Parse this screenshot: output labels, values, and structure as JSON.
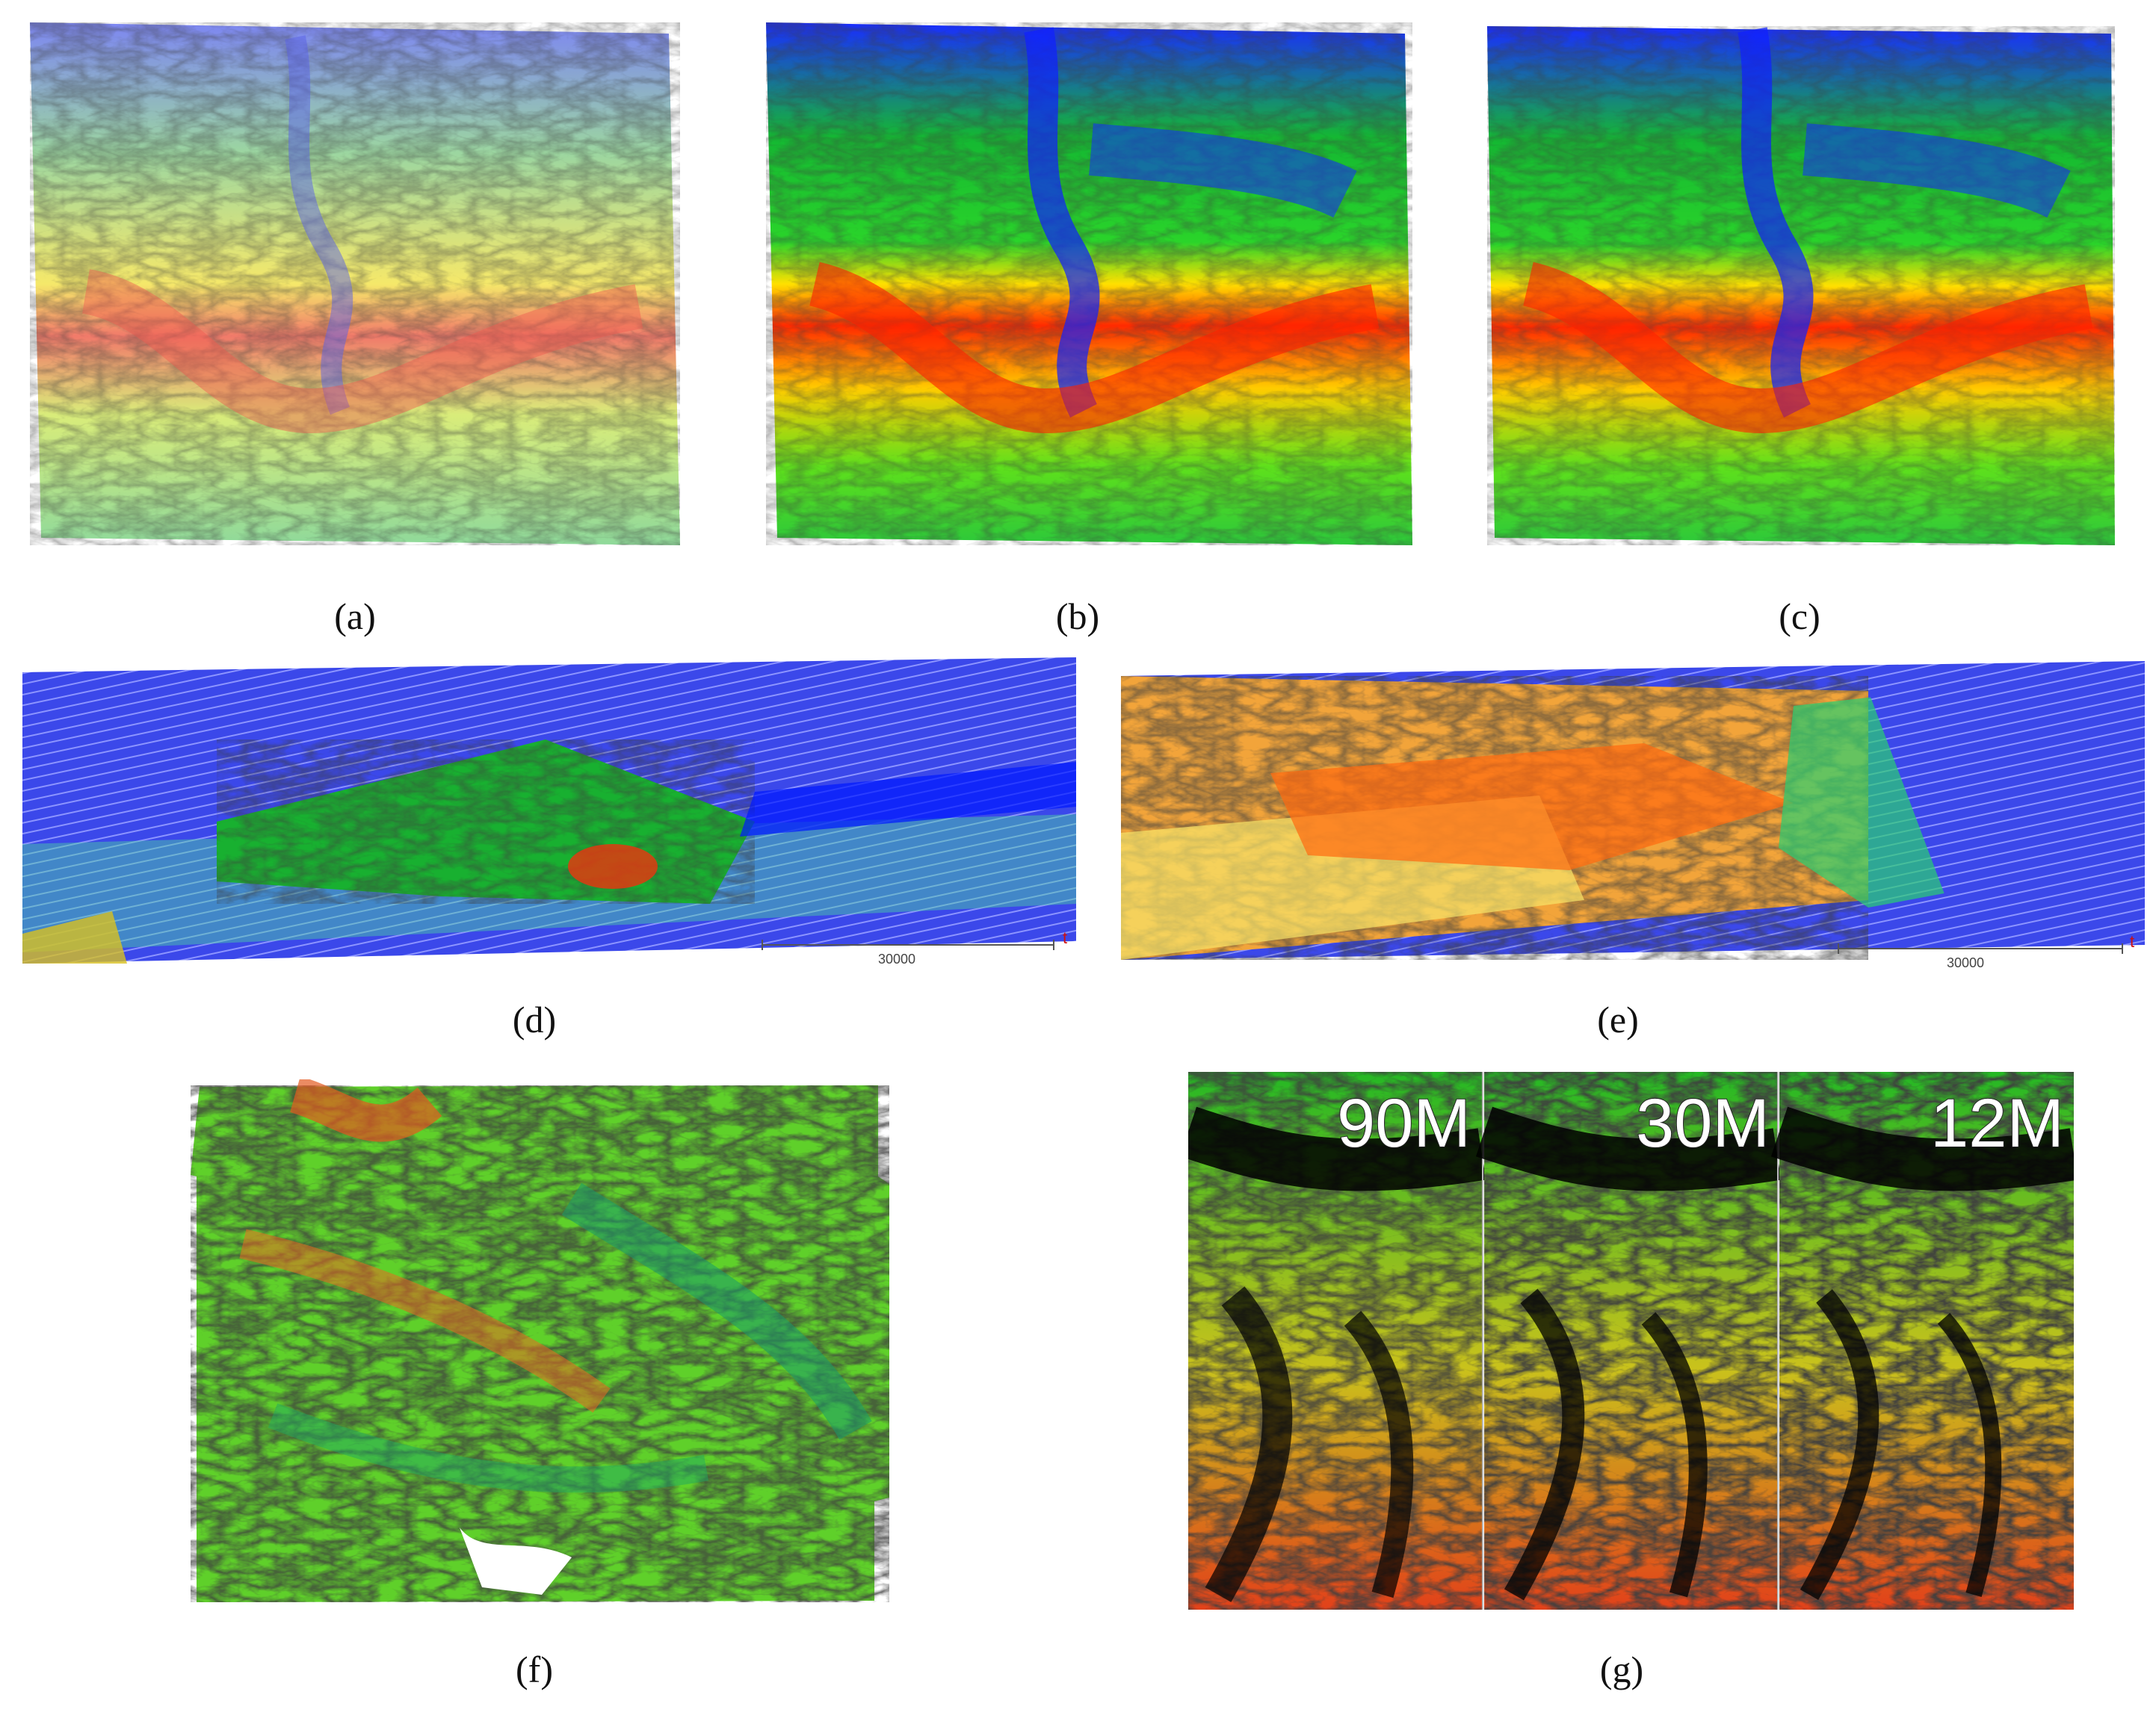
{
  "figure": {
    "captions": {
      "a": "(a)",
      "b": "(b)",
      "c": "(c)",
      "d": "(d)",
      "e": "(e)",
      "f": "(f)",
      "g": "(g)"
    },
    "scale_bar_d": "30000",
    "scale_bar_e": "30000",
    "resolution_labels": [
      "90M",
      "30M",
      "12M"
    ]
  }
}
